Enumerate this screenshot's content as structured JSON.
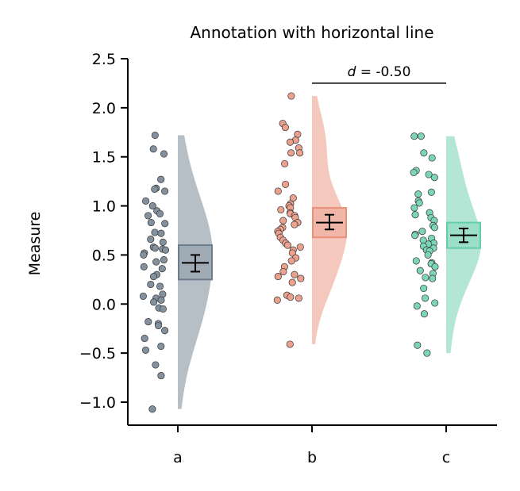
{
  "chart_data": {
    "type": "raincloud",
    "title": "Annotation with horizontal line",
    "xlabel": "",
    "ylabel": "Measure",
    "ylim": [
      -1.25,
      2.5
    ],
    "yticks": [
      "−1.0",
      "−0.5",
      "0.0",
      "0.5",
      "1.0",
      "1.5",
      "2.0",
      "2.5"
    ],
    "ytick_values": [
      -1.0,
      -0.5,
      0.0,
      0.5,
      1.0,
      1.5,
      2.0,
      2.5
    ],
    "categories": [
      "a",
      "b",
      "c"
    ],
    "grid": false,
    "series": [
      {
        "category": "a",
        "color": "#6d7d8d",
        "mean": 0.42,
        "box_low": 0.25,
        "box_high": 0.6,
        "ci_low": 0.33,
        "ci_high": 0.5,
        "kde_min": -1.07,
        "kde_max": 1.72,
        "points": [
          1.72,
          1.58,
          1.53,
          1.27,
          1.18,
          1.17,
          1.15,
          1.05,
          1.0,
          0.95,
          0.92,
          0.9,
          0.83,
          0.82,
          0.73,
          0.72,
          0.66,
          0.63,
          0.58,
          0.57,
          0.56,
          0.55,
          0.52,
          0.5,
          0.45,
          0.43,
          0.38,
          0.36,
          0.3,
          0.28,
          0.2,
          0.18,
          0.1,
          0.08,
          0.06,
          0.04,
          0.02,
          -0.04,
          -0.05,
          -0.18,
          -0.2,
          -0.22,
          -0.27,
          -0.35,
          -0.43,
          -0.47,
          -0.62,
          -0.73,
          -1.07
        ]
      },
      {
        "category": "b",
        "color": "#e8907a",
        "mean": 0.83,
        "box_low": 0.68,
        "box_high": 0.98,
        "ci_low": 0.76,
        "ci_high": 0.91,
        "kde_min": -0.41,
        "kde_max": 2.12,
        "points": [
          2.12,
          1.84,
          1.8,
          1.73,
          1.67,
          1.65,
          1.59,
          1.54,
          1.54,
          1.43,
          1.22,
          1.15,
          1.08,
          1.02,
          1.0,
          0.98,
          0.96,
          0.93,
          0.92,
          0.9,
          0.88,
          0.85,
          0.83,
          0.81,
          0.78,
          0.76,
          0.74,
          0.72,
          0.68,
          0.65,
          0.62,
          0.6,
          0.58,
          0.55,
          0.52,
          0.47,
          0.44,
          0.38,
          0.33,
          0.3,
          0.28,
          0.26,
          0.22,
          0.09,
          0.07,
          0.06,
          0.04,
          -0.41
        ]
      },
      {
        "category": "c",
        "color": "#66cdaa",
        "mean": 0.7,
        "box_low": 0.57,
        "box_high": 0.83,
        "ci_low": 0.63,
        "ci_high": 0.77,
        "kde_min": -0.5,
        "kde_max": 1.71,
        "points": [
          1.71,
          1.71,
          1.54,
          1.49,
          1.36,
          1.34,
          1.32,
          1.29,
          1.14,
          1.12,
          1.05,
          1.03,
          0.98,
          0.93,
          0.91,
          0.88,
          0.85,
          0.8,
          0.78,
          0.74,
          0.71,
          0.7,
          0.67,
          0.65,
          0.62,
          0.61,
          0.59,
          0.57,
          0.55,
          0.54,
          0.5,
          0.44,
          0.42,
          0.41,
          0.38,
          0.34,
          0.31,
          0.27,
          0.26,
          0.16,
          0.06,
          0.01,
          -0.02,
          -0.1,
          -0.42,
          -0.5
        ]
      }
    ],
    "annotation": {
      "from": "b",
      "to": "c",
      "y": 2.25,
      "label_italic": "d",
      "label_rest": " = -0.50"
    }
  }
}
